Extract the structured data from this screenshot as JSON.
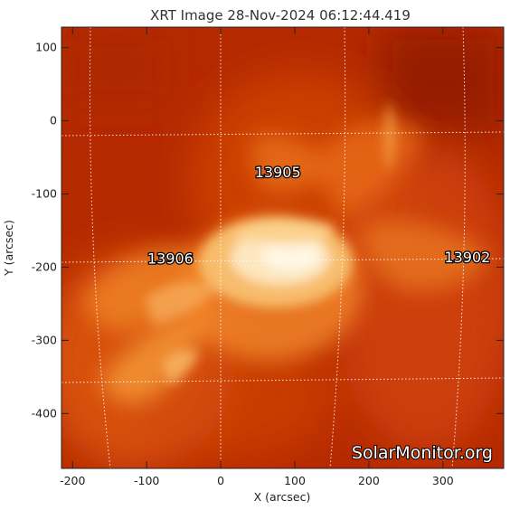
{
  "title": "XRT Image 28-Nov-2024 06:12:44.419",
  "axes": {
    "xlabel": "X (arcsec)",
    "ylabel": "Y (arcsec)",
    "xticks": [
      -200,
      -100,
      0,
      100,
      200,
      300
    ],
    "yticks": [
      100,
      0,
      -100,
      -200,
      -300,
      -400
    ],
    "xlim": [
      -215,
      382
    ],
    "ylim": [
      -475,
      128
    ]
  },
  "active_regions": [
    {
      "label": "13905",
      "x": 77,
      "y": -70
    },
    {
      "label": "13906",
      "x": -68,
      "y": -188
    },
    {
      "label": "13902",
      "x": 333,
      "y": -186
    }
  ],
  "watermark": "SolarMonitor.org",
  "colors": {
    "background": "#b82b00",
    "bright_core": "#fff3dc",
    "grid": "#ffffff"
  }
}
